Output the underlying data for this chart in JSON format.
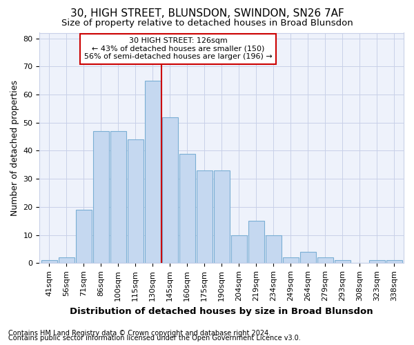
{
  "title": "30, HIGH STREET, BLUNSDON, SWINDON, SN26 7AF",
  "subtitle": "Size of property relative to detached houses in Broad Blunsdon",
  "xlabel": "Distribution of detached houses by size in Broad Blunsdon",
  "ylabel": "Number of detached properties",
  "categories": [
    "41sqm",
    "56sqm",
    "71sqm",
    "86sqm",
    "100sqm",
    "115sqm",
    "130sqm",
    "145sqm",
    "160sqm",
    "175sqm",
    "190sqm",
    "204sqm",
    "219sqm",
    "234sqm",
    "249sqm",
    "264sqm",
    "279sqm",
    "293sqm",
    "308sqm",
    "323sqm",
    "338sqm"
  ],
  "values": [
    1,
    2,
    19,
    47,
    47,
    44,
    65,
    52,
    39,
    33,
    33,
    10,
    15,
    10,
    2,
    4,
    2,
    1,
    0,
    1,
    1
  ],
  "bar_color": "#c5d8f0",
  "bar_edge_color": "#7aaed4",
  "vline_color": "#cc0000",
  "vline_pos": 6.5,
  "annotation_text": "30 HIGH STREET: 126sqm\n← 43% of detached houses are smaller (150)\n56% of semi-detached houses are larger (196) →",
  "annotation_box_color": "#ffffff",
  "annotation_box_edge": "#cc0000",
  "ylim": [
    0,
    82
  ],
  "yticks": [
    0,
    10,
    20,
    30,
    40,
    50,
    60,
    70,
    80
  ],
  "footer1": "Contains HM Land Registry data © Crown copyright and database right 2024.",
  "footer2": "Contains public sector information licensed under the Open Government Licence v3.0.",
  "background_color": "#ffffff",
  "plot_bg_color": "#eef2fb",
  "grid_color": "#c8d0e8",
  "title_fontsize": 11,
  "subtitle_fontsize": 9.5,
  "tick_fontsize": 8,
  "ylabel_fontsize": 9,
  "xlabel_fontsize": 9.5,
  "footer_fontsize": 7,
  "ann_fontsize": 8
}
